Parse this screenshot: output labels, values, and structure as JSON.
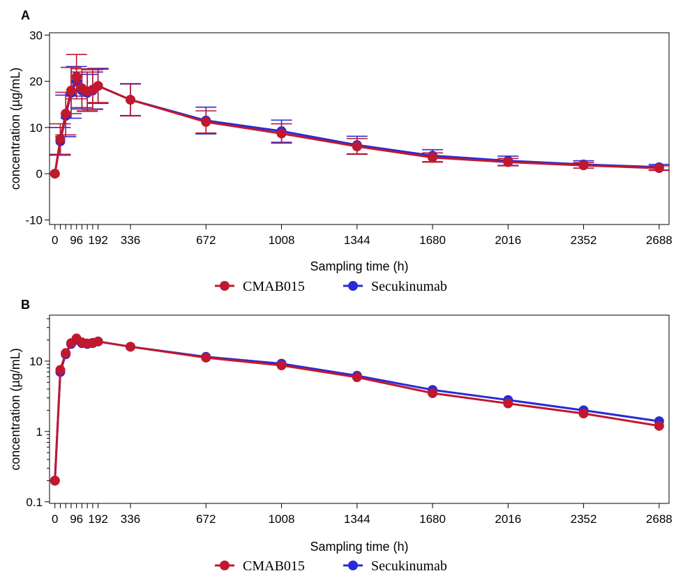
{
  "colors": {
    "CMAB015": "#c0182e",
    "Secukinumab": "#2a2ad6",
    "axis": "#000000"
  },
  "chart_data": [
    {
      "panel": "A",
      "type": "line",
      "xlabel": "Sampling time (h)",
      "ylabel": "concentration (µg/mL)",
      "y_scale": "linear",
      "xlim": [
        -24,
        2732
      ],
      "ylim": [
        -11,
        30.5
      ],
      "x_ticks": [
        0,
        24,
        48,
        72,
        96,
        120,
        144,
        168,
        192,
        336,
        672,
        1008,
        1344,
        1680,
        2016,
        2352,
        2688
      ],
      "x_tick_labels": [
        "0",
        "",
        "",
        "",
        "96",
        "",
        "",
        "",
        "192",
        "336",
        "672",
        "1008",
        "1344",
        "1680",
        "2016",
        "2352",
        "2688"
      ],
      "y_ticks": [
        -10,
        0,
        10,
        20,
        30
      ],
      "y_tick_labels": [
        "-10",
        "0",
        "10",
        "20",
        "30"
      ],
      "grid": false,
      "legend": "bottom",
      "x": [
        0,
        24,
        48,
        72,
        96,
        120,
        144,
        168,
        192,
        336,
        672,
        1008,
        1344,
        1680,
        2016,
        2352,
        2688
      ],
      "series": [
        {
          "name": "Secukinumab",
          "values": [
            0,
            7.0,
            12.5,
            17.5,
            20.0,
            18.0,
            17.5,
            18.0,
            19.0,
            16.0,
            11.5,
            9.2,
            6.2,
            3.9,
            2.8,
            2.0,
            1.4
          ],
          "err": [
            0,
            3.0,
            4.5,
            5.5,
            3.2,
            4.0,
            4.0,
            4.0,
            3.8,
            3.4,
            2.9,
            2.4,
            1.9,
            1.3,
            1.0,
            0.8,
            0.6
          ]
        },
        {
          "name": "CMAB015",
          "values": [
            0,
            7.5,
            13.0,
            18.0,
            21.0,
            18.5,
            17.8,
            18.2,
            19.0,
            16.0,
            11.2,
            8.7,
            5.9,
            3.5,
            2.5,
            1.8,
            1.2
          ],
          "err": [
            0,
            3.3,
            4.6,
            5.0,
            4.8,
            4.2,
            4.2,
            4.3,
            3.6,
            3.5,
            2.4,
            2.1,
            1.7,
            1.0,
            0.8,
            0.6,
            0.5
          ]
        }
      ]
    },
    {
      "panel": "B",
      "type": "line",
      "xlabel": "Sampling time (h)",
      "ylabel": "concentration (µg/mL)",
      "y_scale": "log",
      "xlim": [
        -24,
        2732
      ],
      "ylim": [
        0.095,
        45
      ],
      "x_ticks": [
        0,
        24,
        48,
        72,
        96,
        120,
        144,
        168,
        192,
        336,
        672,
        1008,
        1344,
        1680,
        2016,
        2352,
        2688
      ],
      "x_tick_labels": [
        "0",
        "",
        "",
        "",
        "96",
        "",
        "",
        "",
        "192",
        "336",
        "672",
        "1008",
        "1344",
        "1680",
        "2016",
        "2352",
        "2688"
      ],
      "y_ticks": [
        0.1,
        1,
        10
      ],
      "y_tick_labels": [
        "0.1",
        "1",
        "10"
      ],
      "grid": false,
      "legend": "bottom",
      "x": [
        0,
        24,
        48,
        72,
        96,
        120,
        144,
        168,
        192,
        336,
        672,
        1008,
        1344,
        1680,
        2016,
        2352,
        2688
      ],
      "series": [
        {
          "name": "Secukinumab",
          "values": [
            0.2,
            7.0,
            12.5,
            17.5,
            20.0,
            18.0,
            17.5,
            18.0,
            19.0,
            16.0,
            11.5,
            9.2,
            6.2,
            3.9,
            2.8,
            2.0,
            1.4
          ]
        },
        {
          "name": "CMAB015",
          "values": [
            0.2,
            7.5,
            13.0,
            18.0,
            21.0,
            18.5,
            17.8,
            18.2,
            19.0,
            16.0,
            11.2,
            8.7,
            5.9,
            3.5,
            2.5,
            1.8,
            1.2
          ]
        }
      ]
    }
  ]
}
